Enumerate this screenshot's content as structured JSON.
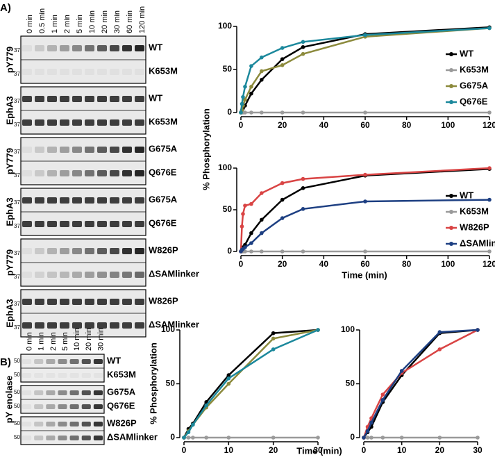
{
  "panel_labels": [
    "A)",
    "B)"
  ],
  "blots": {
    "A": {
      "times": [
        "0 min",
        "0.5 min",
        "1 min",
        "2 min",
        "5 min",
        "10 min",
        "20 min",
        "30 min",
        "60 min",
        "120 min"
      ],
      "marker": "37",
      "groups": [
        {
          "side": "pY779",
          "rows": [
            "WT",
            "K653M"
          ]
        },
        {
          "side": "EphA3",
          "rows": [
            "WT",
            "K653M"
          ]
        },
        {
          "side": "pY779",
          "rows": [
            "G675A",
            "Q676E"
          ]
        },
        {
          "side": "EphA3",
          "rows": [
            "G675A",
            "Q676E"
          ]
        },
        {
          "side": "pY779",
          "rows": [
            "W826P",
            "ΔSAMlinker"
          ]
        },
        {
          "side": "EphA3",
          "rows": [
            "W826P",
            "ΔSAMlinker"
          ]
        }
      ]
    },
    "B": {
      "times": [
        "0 min",
        "1 min",
        "2 min",
        "5 min",
        "10 min",
        "20 min",
        "30 min"
      ],
      "marker": "50",
      "side": "pY enolase",
      "groups": [
        [
          "WT",
          "K653M"
        ],
        [
          "G675A",
          "Q676E"
        ],
        [
          "W826P",
          "ΔSAMlinker"
        ]
      ]
    }
  },
  "chart_data": [
    {
      "type": "line",
      "y_label": "% Phosphorylation",
      "legend": "right",
      "x": [
        0,
        0.5,
        1,
        2,
        5,
        10,
        20,
        30,
        60,
        120
      ],
      "xlim": [
        0,
        120
      ],
      "xticks": [
        0,
        20,
        40,
        60,
        80,
        100,
        120
      ],
      "ylim": [
        0,
        100
      ],
      "yticks": [
        0,
        50,
        100
      ],
      "series": [
        {
          "name": "WT",
          "color": "#000000",
          "values": [
            0,
            2,
            5,
            8,
            22,
            38,
            62,
            76,
            91,
            99
          ]
        },
        {
          "name": "K653M",
          "color": "#9a9a9a",
          "values": [
            0,
            0,
            0,
            0,
            0,
            0,
            0,
            0,
            0,
            0
          ]
        },
        {
          "name": "G675A",
          "color": "#8c8a3c",
          "values": [
            0,
            3,
            8,
            15,
            30,
            48,
            55,
            68,
            88,
            98
          ]
        },
        {
          "name": "Q676E",
          "color": "#1b889c",
          "values": [
            0,
            10,
            18,
            30,
            54,
            64,
            75,
            82,
            90,
            98
          ]
        }
      ]
    },
    {
      "type": "line",
      "x_label": "Time (min)",
      "legend": "right",
      "x": [
        0,
        0.5,
        1,
        2,
        5,
        10,
        20,
        30,
        60,
        120
      ],
      "xlim": [
        0,
        120
      ],
      "xticks": [
        0,
        20,
        40,
        60,
        80,
        100,
        120
      ],
      "ylim": [
        0,
        100
      ],
      "yticks": [
        0,
        50,
        100
      ],
      "series": [
        {
          "name": "WT",
          "color": "#000000",
          "values": [
            0,
            2,
            5,
            8,
            22,
            38,
            62,
            76,
            91,
            99
          ]
        },
        {
          "name": "K653M",
          "color": "#9a9a9a",
          "values": [
            0,
            0,
            0,
            0,
            0,
            0,
            0,
            0,
            0,
            0
          ]
        },
        {
          "name": "W826P",
          "color": "#d94444",
          "values": [
            0,
            30,
            45,
            55,
            57,
            70,
            82,
            87,
            92,
            100
          ]
        },
        {
          "name": "ΔSAMlinker",
          "color": "#1d3f82",
          "values": [
            0,
            2,
            3,
            5,
            10,
            22,
            40,
            51,
            60,
            62
          ]
        }
      ]
    },
    {
      "type": "line",
      "y_label": "% Phosphorylation",
      "x_label": "Time (min)",
      "x": [
        0,
        1,
        2,
        5,
        10,
        20,
        30
      ],
      "xlim": [
        0,
        30
      ],
      "xticks": [
        0,
        10,
        20,
        30
      ],
      "ylim": [
        0,
        100
      ],
      "yticks": [
        0,
        50,
        100
      ],
      "series": [
        {
          "color": "#000000",
          "values": [
            0,
            8,
            13,
            33,
            58,
            97,
            100
          ]
        },
        {
          "color": "#9a9a9a",
          "values": [
            0,
            0,
            0,
            0,
            0,
            0,
            0
          ]
        },
        {
          "color": "#8c8a3c",
          "values": [
            0,
            6,
            12,
            28,
            50,
            92,
            100
          ]
        },
        {
          "color": "#1b889c",
          "values": [
            0,
            5,
            12,
            30,
            55,
            82,
            100
          ]
        }
      ]
    },
    {
      "type": "line",
      "x": [
        0,
        1,
        2,
        5,
        10,
        20,
        30
      ],
      "xlim": [
        0,
        30
      ],
      "xticks": [
        0,
        10,
        20,
        30
      ],
      "ylim": [
        0,
        100
      ],
      "yticks": [
        0,
        50,
        100
      ],
      "series": [
        {
          "color": "#000000",
          "values": [
            0,
            5,
            10,
            33,
            58,
            97,
            100
          ]
        },
        {
          "color": "#9a9a9a",
          "values": [
            0,
            0,
            0,
            0,
            0,
            0,
            0
          ]
        },
        {
          "color": "#d94444",
          "values": [
            0,
            10,
            18,
            40,
            60,
            82,
            100
          ]
        },
        {
          "color": "#1d3f82",
          "values": [
            0,
            6,
            14,
            35,
            62,
            98,
            100
          ]
        }
      ]
    }
  ]
}
